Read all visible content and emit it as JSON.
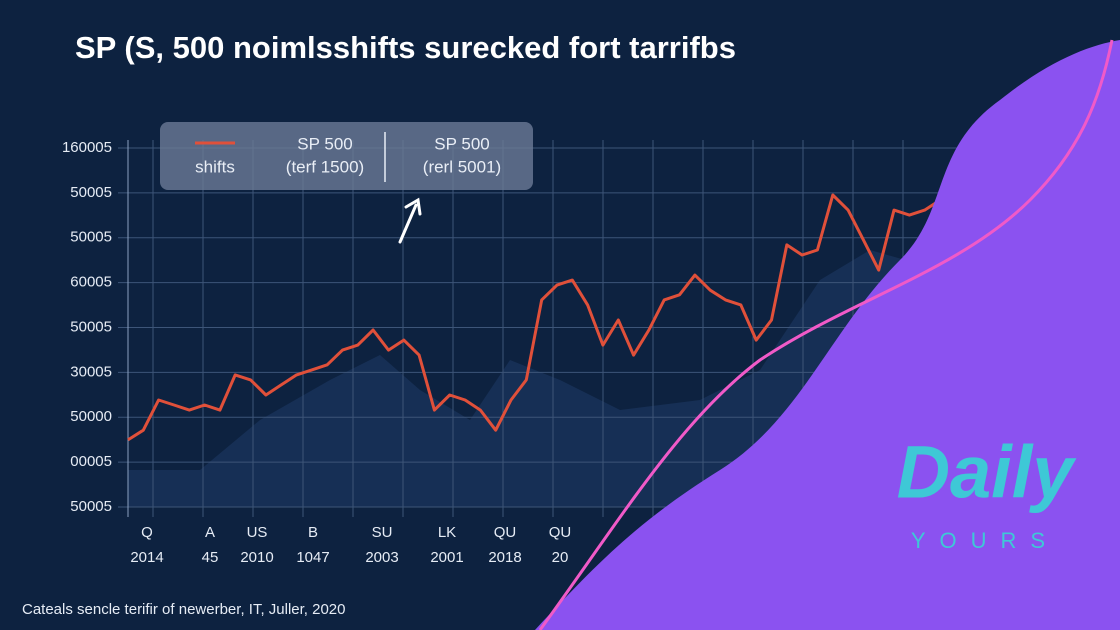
{
  "chart_data": {
    "type": "line",
    "title": "SP (S, 500 noimlsshifts surecked fort tarrifbs",
    "y_axis_labels": [
      "160005",
      "50005",
      "50005",
      "60005",
      "50005",
      "30005",
      "50000",
      "00005",
      "50005"
    ],
    "x_labels": [
      {
        "line1": "Q",
        "line2": "2014"
      },
      {
        "line1": "A",
        "line2": "45"
      },
      {
        "line1": "US",
        "line2": "2010"
      },
      {
        "line1": "B",
        "line2": "1047"
      },
      {
        "line1": "SU",
        "line2": "2003"
      },
      {
        "line1": "LK",
        "line2": "2001"
      },
      {
        "line1": "QU",
        "line2": "2018"
      },
      {
        "line1": "QU",
        "line2": "20"
      }
    ],
    "ylim": [
      0,
      100
    ],
    "grid": true,
    "series": [
      {
        "name": "shifts",
        "color": "#e0503a",
        "values": [
          18.7,
          21.4,
          29.8,
          28.4,
          27.0,
          28.4,
          27.0,
          36.8,
          35.4,
          31.2,
          34.0,
          36.8,
          38.2,
          39.6,
          43.7,
          45.1,
          49.3,
          43.7,
          46.5,
          42.3,
          27.0,
          31.2,
          29.8,
          27.0,
          21.4,
          29.8,
          35.4,
          57.7,
          61.8,
          63.2,
          56.3,
          45.1,
          52.1,
          42.3,
          49.3,
          57.7,
          59.1,
          64.6,
          60.4,
          57.7,
          56.3,
          46.5,
          52.1,
          73.0,
          70.2,
          71.6,
          86.9,
          82.7,
          74.4,
          66.0,
          82.7,
          81.3,
          82.7,
          85.5
        ]
      }
    ],
    "legend_entries": [
      {
        "line1": "SP 500",
        "line2": "(terf 1500)"
      },
      {
        "line1": "SP 500",
        "line2": "(rerl 5001)"
      }
    ],
    "footnote": "Cateals sencle terifir of newerber, IT, Juller, 2020"
  },
  "logo": {
    "word": "Daily",
    "tagline": "YOURS"
  }
}
